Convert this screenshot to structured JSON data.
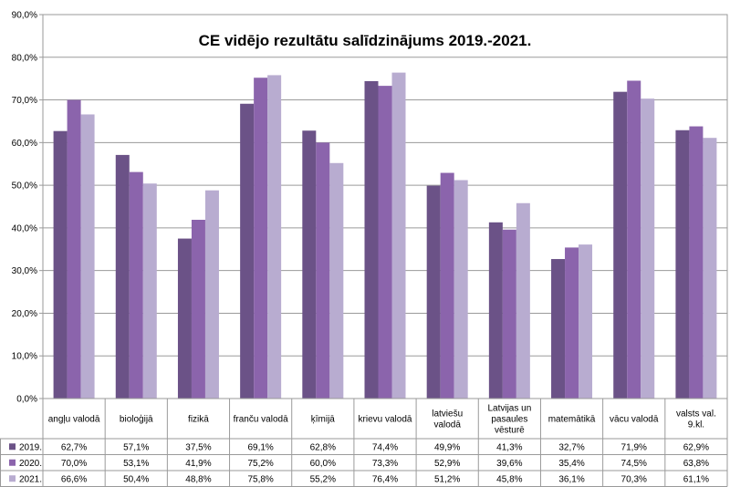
{
  "chart_data": {
    "type": "bar",
    "title": "CE vidējo rezultātu salīdzinājums 2019.-2021.",
    "ylim": [
      0,
      90
    ],
    "yticks": [
      "0,0%",
      "10,0%",
      "20,0%",
      "30,0%",
      "40,0%",
      "50,0%",
      "60,0%",
      "70,0%",
      "80,0%",
      "90,0%"
    ],
    "grid": true,
    "legend": "data-table",
    "categories": [
      [
        "angļu valodā"
      ],
      [
        "bioloģijā"
      ],
      [
        "fizikā"
      ],
      [
        "franču valodā"
      ],
      [
        "ķīmijā"
      ],
      [
        "krievu valodā"
      ],
      [
        "latviešu",
        "valodā"
      ],
      [
        "Latvijas un",
        "pasaules",
        "vēsturē"
      ],
      [
        "matemātikā"
      ],
      [
        "vācu valodā"
      ],
      [
        "valsts val.",
        "9.kl."
      ]
    ],
    "series": [
      {
        "name": "2019.",
        "color": "#6b5287",
        "values": [
          62.7,
          57.1,
          37.5,
          69.1,
          62.8,
          74.4,
          49.9,
          41.3,
          32.7,
          71.9,
          62.9
        ],
        "labels": [
          "62,7%",
          "57,1%",
          "37,5%",
          "69,1%",
          "62,8%",
          "74,4%",
          "49,9%",
          "41,3%",
          "32,7%",
          "71,9%",
          "62,9%"
        ]
      },
      {
        "name": "2020.",
        "color": "#8b64ac",
        "values": [
          70.0,
          53.1,
          41.9,
          75.2,
          60.0,
          73.3,
          52.9,
          39.6,
          35.4,
          74.5,
          63.8
        ],
        "labels": [
          "70,0%",
          "53,1%",
          "41,9%",
          "75,2%",
          "60,0%",
          "73,3%",
          "52,9%",
          "39,6%",
          "35,4%",
          "74,5%",
          "63,8%"
        ]
      },
      {
        "name": "2021.",
        "color": "#b8acd0",
        "values": [
          66.6,
          50.4,
          48.8,
          75.8,
          55.2,
          76.4,
          51.2,
          45.8,
          36.1,
          70.3,
          61.1
        ],
        "labels": [
          "66,6%",
          "50,4%",
          "48,8%",
          "75,8%",
          "55,2%",
          "76,4%",
          "51,2%",
          "45,8%",
          "36,1%",
          "70,3%",
          "61,1%"
        ]
      }
    ]
  }
}
